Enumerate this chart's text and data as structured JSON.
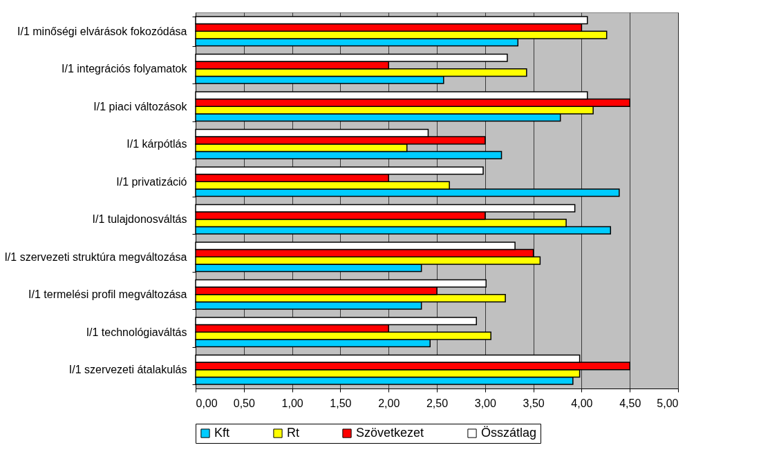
{
  "chart_data": {
    "type": "bar",
    "orientation": "horizontal",
    "categories": [
      "I/1 minőségi elvárások fokozódása",
      "I/1 integrációs folyamatok",
      "I/1 piaci változások",
      "I/1 kárpótlás",
      "I/1 privatizáció",
      "I/1 tulajdonosváltás",
      "I/1 szervezeti struktúra megváltozása",
      "I/1 termelési profil megváltozása",
      "I/1 technológiaváltás",
      "I/1 szervezeti átalakulás"
    ],
    "series": [
      {
        "name": "Kft",
        "color": "#00ccff",
        "values": [
          3.34,
          2.57,
          3.78,
          3.17,
          4.39,
          4.3,
          2.34,
          2.34,
          2.43,
          3.91
        ]
      },
      {
        "name": "Rt",
        "color": "#ffff00",
        "values": [
          4.26,
          3.43,
          4.12,
          2.19,
          2.63,
          3.84,
          3.57,
          3.21,
          3.06,
          3.98
        ]
      },
      {
        "name": "Szövetkezet",
        "color": "#ff0000",
        "values": [
          4.0,
          2.0,
          4.5,
          3.0,
          2.0,
          3.0,
          3.5,
          2.5,
          2.0,
          4.5
        ]
      },
      {
        "name": "Összátlag",
        "color": "#ffffff",
        "values": [
          4.06,
          3.23,
          4.06,
          2.41,
          2.98,
          3.93,
          3.31,
          3.01,
          2.91,
          3.98
        ]
      }
    ],
    "xlim": [
      0,
      5
    ],
    "xticks": [
      {
        "value": 0,
        "label": "0,00"
      },
      {
        "value": 0.5,
        "label": "0,50"
      },
      {
        "value": 1,
        "label": "1,00"
      },
      {
        "value": 1.5,
        "label": "1,50"
      },
      {
        "value": 2,
        "label": "2,00"
      },
      {
        "value": 2.5,
        "label": "2,50"
      },
      {
        "value": 3,
        "label": "3,00"
      },
      {
        "value": 3.5,
        "label": "3,50"
      },
      {
        "value": 4,
        "label": "4,00"
      },
      {
        "value": 4.5,
        "label": "4,50"
      },
      {
        "value": 5,
        "label": "5,00"
      }
    ],
    "grid": "x",
    "legend": "bottom"
  }
}
